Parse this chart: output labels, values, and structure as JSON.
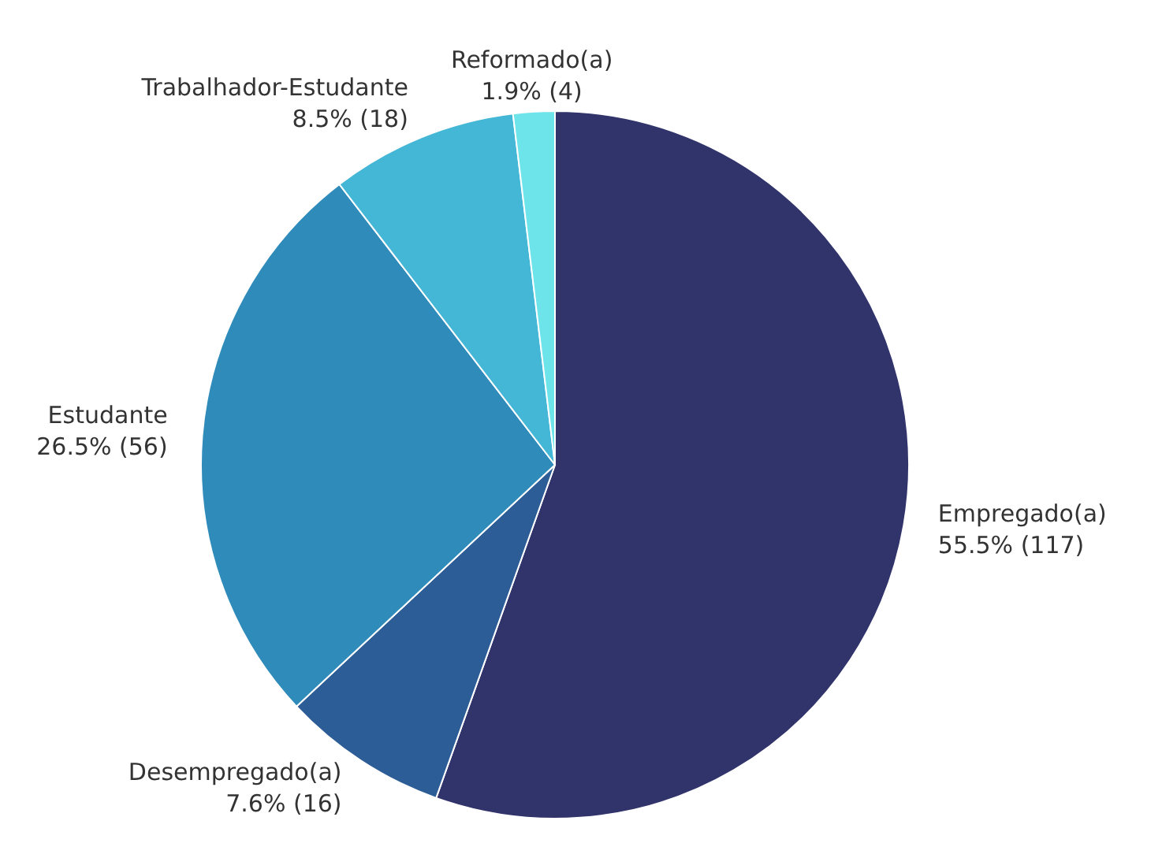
{
  "chart_data": {
    "type": "pie",
    "categories": [
      "Empregado(a)",
      "Desempregado(a)",
      "Estudante",
      "Trabalhador-Estudante",
      "Reformado(a)"
    ],
    "values": [
      117,
      16,
      56,
      18,
      4
    ],
    "value_labels": [
      "55.5% (117)",
      "7.6% (16)",
      "26.5% (56)",
      "8.5% (18)",
      "1.9% (4)"
    ],
    "colors": [
      "#31336b",
      "#2d5d96",
      "#2e8bba",
      "#44b6d6",
      "#6de3ea"
    ],
    "legend": false
  }
}
